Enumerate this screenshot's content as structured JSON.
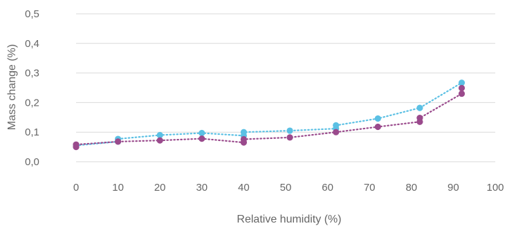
{
  "chart_data": {
    "type": "scatter",
    "title": "",
    "xlabel": "Relative humidity (%)",
    "ylabel": "Mass change (%)",
    "xlim": [
      0,
      100
    ],
    "ylim": [
      0,
      0.5
    ],
    "x_ticks": [
      "0",
      "10",
      "20",
      "30",
      "40",
      "50",
      "60",
      "70",
      "80",
      "90",
      "100"
    ],
    "y_ticks": [
      "0,0",
      "0,1",
      "0,2",
      "0,3",
      "0,4",
      "0,5"
    ],
    "grid": "horizontal",
    "legend": "none",
    "series": [
      {
        "color": "#5bc0e4",
        "line_style": "dotted",
        "x": [
          0,
          10,
          10,
          20,
          30,
          40,
          40,
          51,
          62,
          62,
          72,
          82,
          92
        ],
        "y": [
          0.055,
          0.068,
          0.077,
          0.09,
          0.097,
          0.088,
          0.1,
          0.105,
          0.112,
          0.123,
          0.146,
          0.182,
          0.267
        ]
      },
      {
        "color": "#9a4a8c",
        "line_style": "dotted",
        "x": [
          0,
          0,
          10,
          20,
          30,
          40,
          40,
          51,
          62,
          72,
          82,
          82,
          92,
          92
        ],
        "y": [
          0.05,
          0.058,
          0.068,
          0.072,
          0.078,
          0.065,
          0.076,
          0.082,
          0.1,
          0.118,
          0.135,
          0.148,
          0.23,
          0.249
        ]
      }
    ]
  }
}
